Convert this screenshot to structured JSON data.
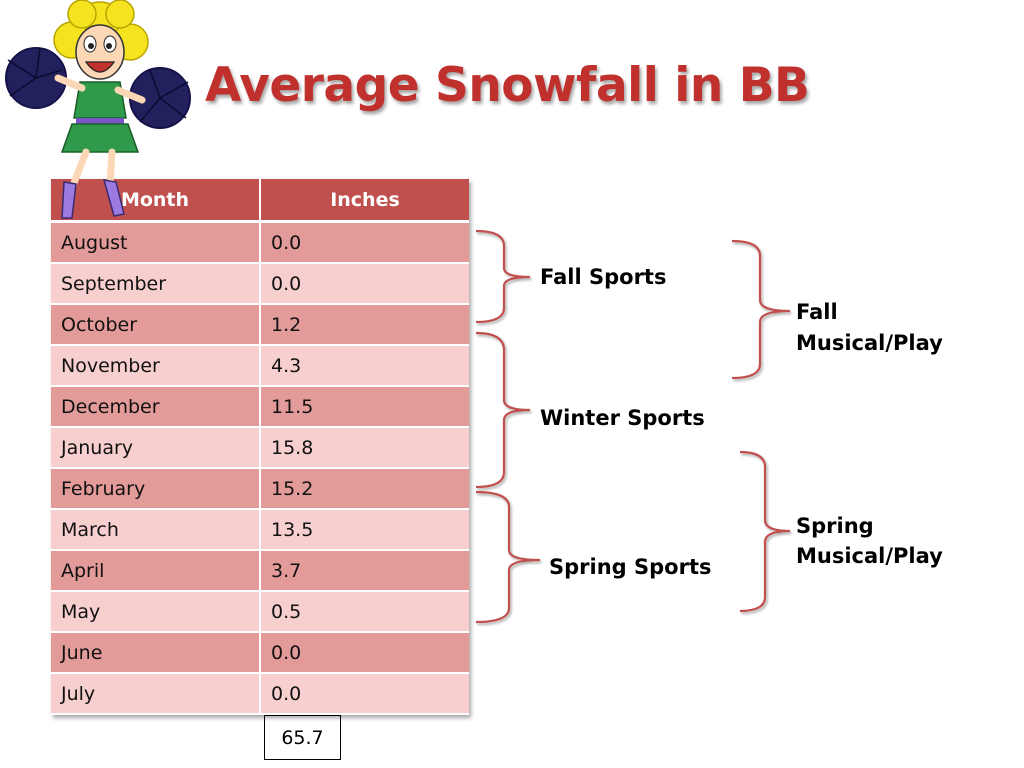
{
  "slide": {
    "title": "Average Snowfall in BB"
  },
  "chart_data": {
    "type": "table",
    "title": "Average Snowfall in BB",
    "columns": [
      "Month",
      "Inches"
    ],
    "rows": [
      [
        "August",
        "0.0"
      ],
      [
        "September",
        "0.0"
      ],
      [
        "October",
        "1.2"
      ],
      [
        "November",
        "4.3"
      ],
      [
        "December",
        "11.5"
      ],
      [
        "January",
        "15.8"
      ],
      [
        "February",
        "15.2"
      ],
      [
        "March",
        "13.5"
      ],
      [
        "April",
        "3.7"
      ],
      [
        "May",
        "0.5"
      ],
      [
        "June",
        "0.0"
      ],
      [
        "July",
        "0.0"
      ]
    ],
    "total": "65.7"
  },
  "groups": {
    "fall_sports": "Fall Sports",
    "winter_sports": "Winter Sports",
    "spring_sports": "Spring Sports",
    "fall_musical_1": "Fall",
    "fall_musical_2": "Musical/Play",
    "spring_musical_1": "Spring",
    "spring_musical_2": "Musical/Play"
  },
  "colors": {
    "title": "#c0312d",
    "header": "#c0504d",
    "bracket": "#c0504d"
  }
}
